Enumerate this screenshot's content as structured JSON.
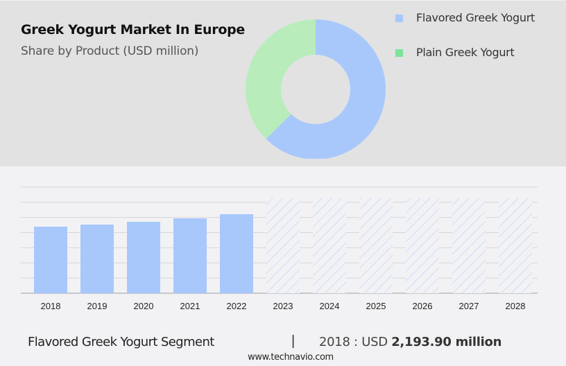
{
  "header": {
    "title": "Greek Yogurt Market In Europe",
    "subtitle": "Share by Product (USD million)"
  },
  "legend": [
    {
      "label": "Flavored Greek Yogurt",
      "color": "#a8c8fc"
    },
    {
      "label": "Plain Greek Yogurt",
      "color": "#7ce39a"
    }
  ],
  "footer": {
    "segment": "Flavored Greek Yogurt Segment",
    "separator": "|",
    "year_label": "2018 : USD",
    "value": "2,193.90 million",
    "url": "www.technavio.com"
  },
  "chart_data": [
    {
      "type": "pie",
      "title": "Greek Yogurt Market In Europe",
      "subtitle": "Share by Product (USD million)",
      "donut": true,
      "categories": [
        "Flavored Greek Yogurt",
        "Plain Greek Yogurt"
      ],
      "values": [
        62.5,
        37.5
      ],
      "colors": [
        "#a8c8fc",
        "#b8edbb"
      ],
      "legend_position": "right"
    },
    {
      "type": "bar",
      "title": "Flavored Greek Yogurt Segment",
      "categories": [
        "2018",
        "2019",
        "2020",
        "2021",
        "2022",
        "2023",
        "2024",
        "2025",
        "2026",
        "2027",
        "2028"
      ],
      "values": [
        2193.9,
        2262,
        2353,
        2468,
        2605,
        null,
        null,
        null,
        null,
        null,
        null
      ],
      "forecast": [
        false,
        false,
        false,
        false,
        false,
        true,
        true,
        true,
        true,
        true,
        true
      ],
      "forecast_placeholder_height": 3000,
      "xlabel": "",
      "ylabel": "",
      "ylim": [
        0,
        3500
      ],
      "grid": true,
      "y_ticks_hidden": true,
      "gridline_step": 500,
      "bar_color": "#a8c8fc",
      "annotation": "2018 : USD 2,193.90 million"
    }
  ]
}
